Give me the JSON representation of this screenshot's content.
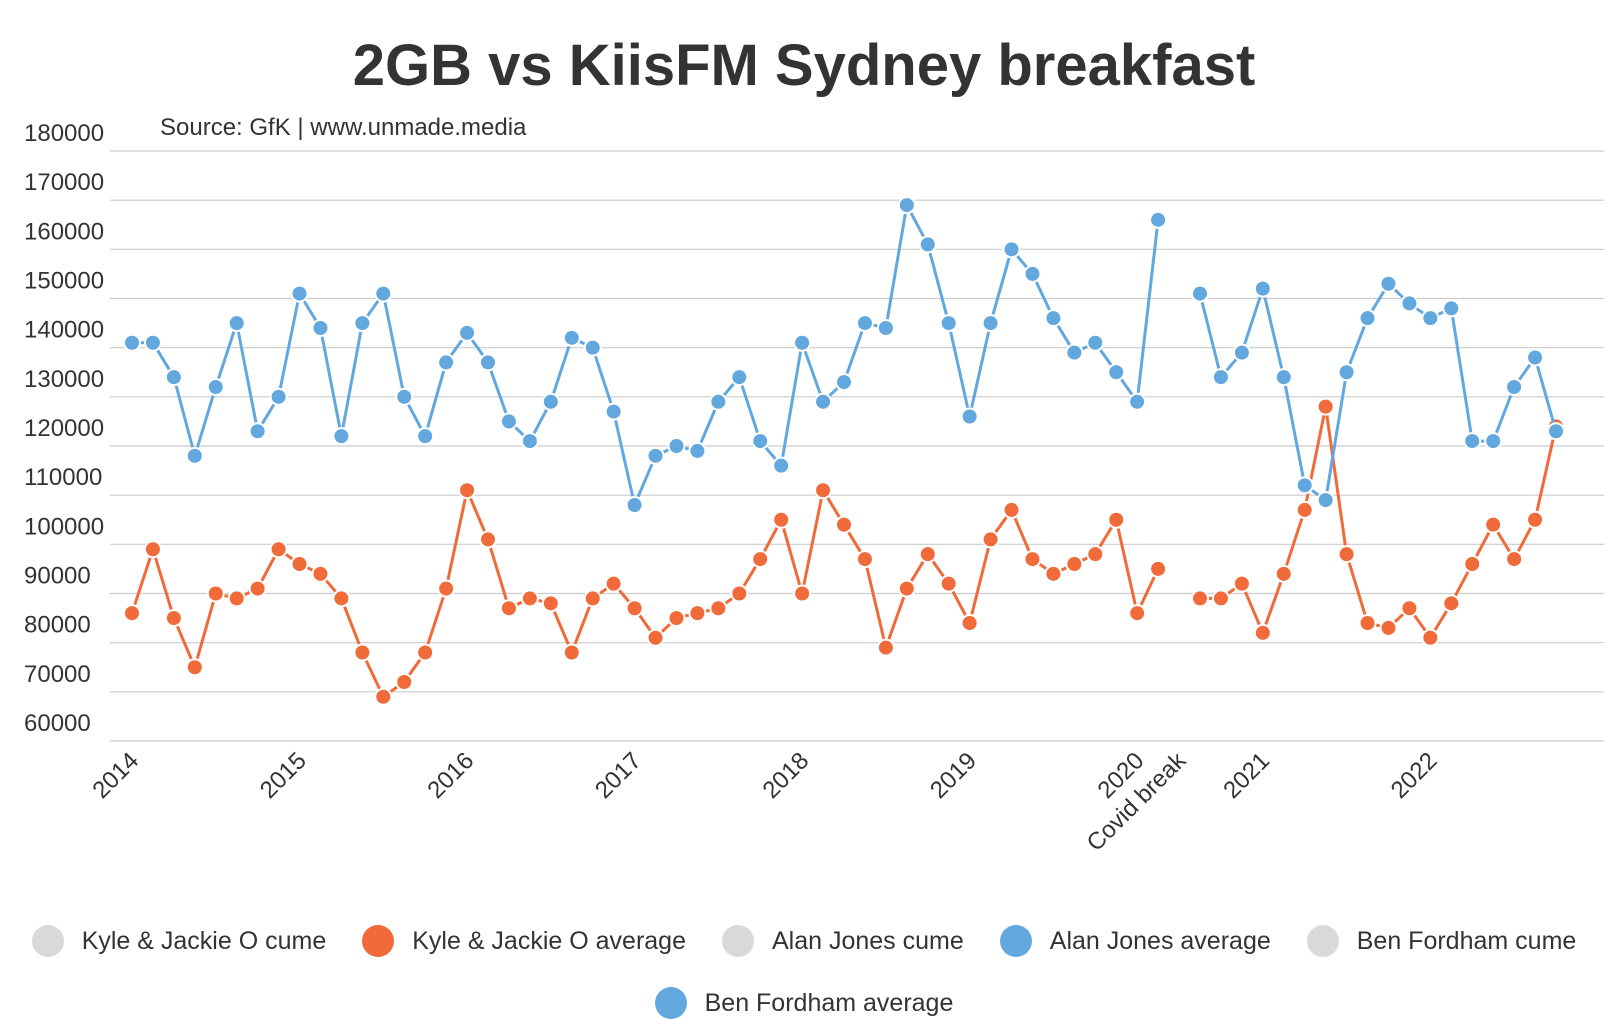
{
  "chart_data": {
    "type": "line",
    "title": "2GB vs KiisFM Sydney breakfast",
    "subtitle": "Source: GfK | www.unmade.media",
    "ylim": [
      60000,
      180000
    ],
    "yticks": [
      60000,
      70000,
      80000,
      90000,
      100000,
      110000,
      120000,
      130000,
      140000,
      150000,
      160000,
      170000,
      180000
    ],
    "xtick_labels": [
      {
        "index": 0,
        "label": "2014"
      },
      {
        "index": 8,
        "label": "2015"
      },
      {
        "index": 16,
        "label": "2016"
      },
      {
        "index": 24,
        "label": "2017"
      },
      {
        "index": 32,
        "label": "2018"
      },
      {
        "index": 40,
        "label": "2019"
      },
      {
        "index": 48,
        "label": "2020"
      },
      {
        "index": 50,
        "label": "Covid break"
      },
      {
        "index": 54,
        "label": "2021"
      },
      {
        "index": 62,
        "label": "2022"
      }
    ],
    "grid": true,
    "legend_position": "bottom",
    "series": [
      {
        "name": "Kyle & Jackie O cume",
        "color": "#d9d9d9",
        "values": []
      },
      {
        "name": "Kyle & Jackie O average",
        "color": "#f06a3a",
        "values": [
          86000,
          99000,
          85000,
          75000,
          90000,
          89000,
          91000,
          99000,
          96000,
          94000,
          89000,
          78000,
          69000,
          72000,
          78000,
          91000,
          111000,
          101000,
          87000,
          89000,
          88000,
          78000,
          89000,
          92000,
          87000,
          81000,
          85000,
          86000,
          87000,
          90000,
          97000,
          105000,
          90000,
          111000,
          104000,
          97000,
          79000,
          91000,
          98000,
          92000,
          84000,
          101000,
          107000,
          97000,
          94000,
          96000,
          98000,
          105000,
          86000,
          95000,
          null,
          89000,
          89000,
          92000,
          82000,
          94000,
          107000,
          128000,
          98000,
          84000,
          83000,
          87000,
          81000,
          88000,
          96000,
          104000,
          97000,
          105000,
          124000
        ]
      },
      {
        "name": "Alan Jones cume",
        "color": "#d9d9d9",
        "values": []
      },
      {
        "name": "Alan Jones average",
        "color": "#62a8de",
        "values": [
          141000,
          141000,
          134000,
          118000,
          132000,
          145000,
          123000,
          130000,
          151000,
          144000,
          122000,
          145000,
          151000,
          130000,
          122000,
          137000,
          143000,
          137000,
          125000,
          121000,
          129000,
          142000,
          140000,
          127000,
          108000,
          118000,
          120000,
          119000,
          129000,
          134000,
          121000,
          116000,
          141000,
          129000,
          133000,
          145000,
          144000,
          169000,
          161000,
          145000,
          126000,
          145000,
          160000,
          155000,
          146000,
          139000,
          141000,
          135000,
          129000,
          166000
        ]
      },
      {
        "name": "Ben Fordham cume",
        "color": "#d9d9d9",
        "values": []
      },
      {
        "name": "Ben Fordham average",
        "color": "#62a8de",
        "values": [
          null,
          null,
          null,
          null,
          null,
          null,
          null,
          null,
          null,
          null,
          null,
          null,
          null,
          null,
          null,
          null,
          null,
          null,
          null,
          null,
          null,
          null,
          null,
          null,
          null,
          null,
          null,
          null,
          null,
          null,
          null,
          null,
          null,
          null,
          null,
          null,
          null,
          null,
          null,
          null,
          null,
          null,
          null,
          null,
          null,
          null,
          null,
          null,
          null,
          null,
          null,
          151000,
          134000,
          139000,
          152000,
          134000,
          112000,
          109000,
          135000,
          146000,
          153000,
          149000,
          146000,
          148000,
          121000,
          121000,
          132000,
          138000,
          123000
        ]
      }
    ]
  }
}
